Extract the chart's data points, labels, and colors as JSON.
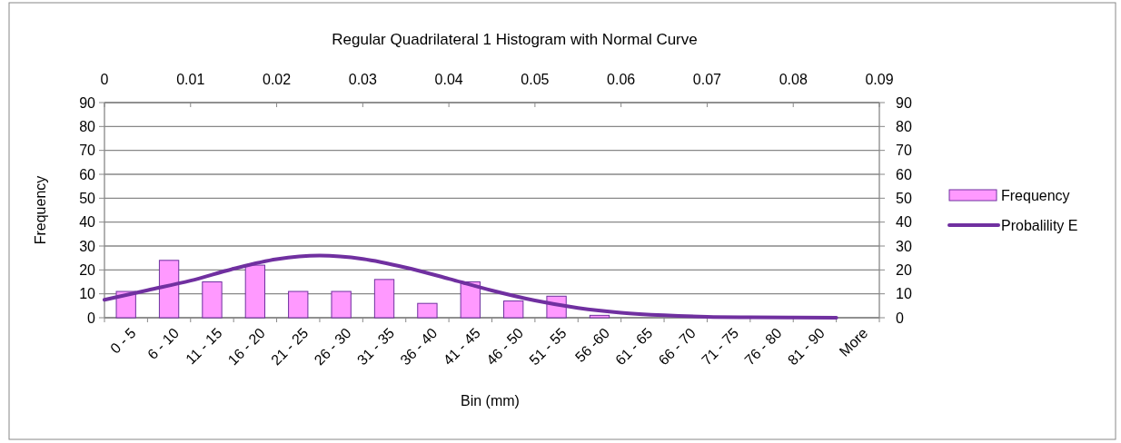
{
  "chart_data": {
    "type": "bar",
    "title": "Regular Quadrilateral 1 Histogram with Normal Curve",
    "xlabel": "Bin (mm)",
    "ylabel": "Frequency",
    "categories": [
      "0 - 5",
      "6 - 10",
      "11 - 15",
      "16 - 20",
      "21 - 25",
      "26 - 30",
      "31 - 35",
      "36 - 40",
      "41 - 45",
      "46 - 50",
      "51 - 55",
      "56 -60",
      "61 - 65",
      "66 - 70",
      "71 - 75",
      "76 - 80",
      "81 - 90",
      "More"
    ],
    "series": [
      {
        "name": "Frequency",
        "color": "#ff99ff",
        "values": [
          11,
          24,
          15,
          22,
          11,
          11,
          16,
          6,
          15,
          7,
          9,
          1,
          0,
          0,
          0,
          0,
          0,
          0
        ]
      },
      {
        "name": "Probalility E",
        "type": "line",
        "axis": "y2",
        "color": "#7030a0",
        "values": [
          7.5,
          11.5,
          15.5,
          20.5,
          24.5,
          26,
          24.6,
          21,
          16.3,
          11.4,
          7.2,
          4.1,
          2.1,
          1,
          0.4,
          0.2,
          0.1,
          0
        ]
      }
    ],
    "ylim": [
      0,
      90
    ],
    "yticks": [
      0,
      10,
      20,
      30,
      40,
      50,
      60,
      70,
      80,
      90
    ],
    "y2lim": [
      0,
      90
    ],
    "y2ticks": [
      0,
      10,
      20,
      30,
      40,
      50,
      60,
      70,
      80,
      90
    ],
    "x2lim": [
      0,
      0.09
    ],
    "x2ticks": [
      0,
      0.01,
      0.02,
      0.03,
      0.04,
      0.05,
      0.06,
      0.07,
      0.08,
      0.09
    ],
    "grid": "y",
    "legend": "right"
  }
}
